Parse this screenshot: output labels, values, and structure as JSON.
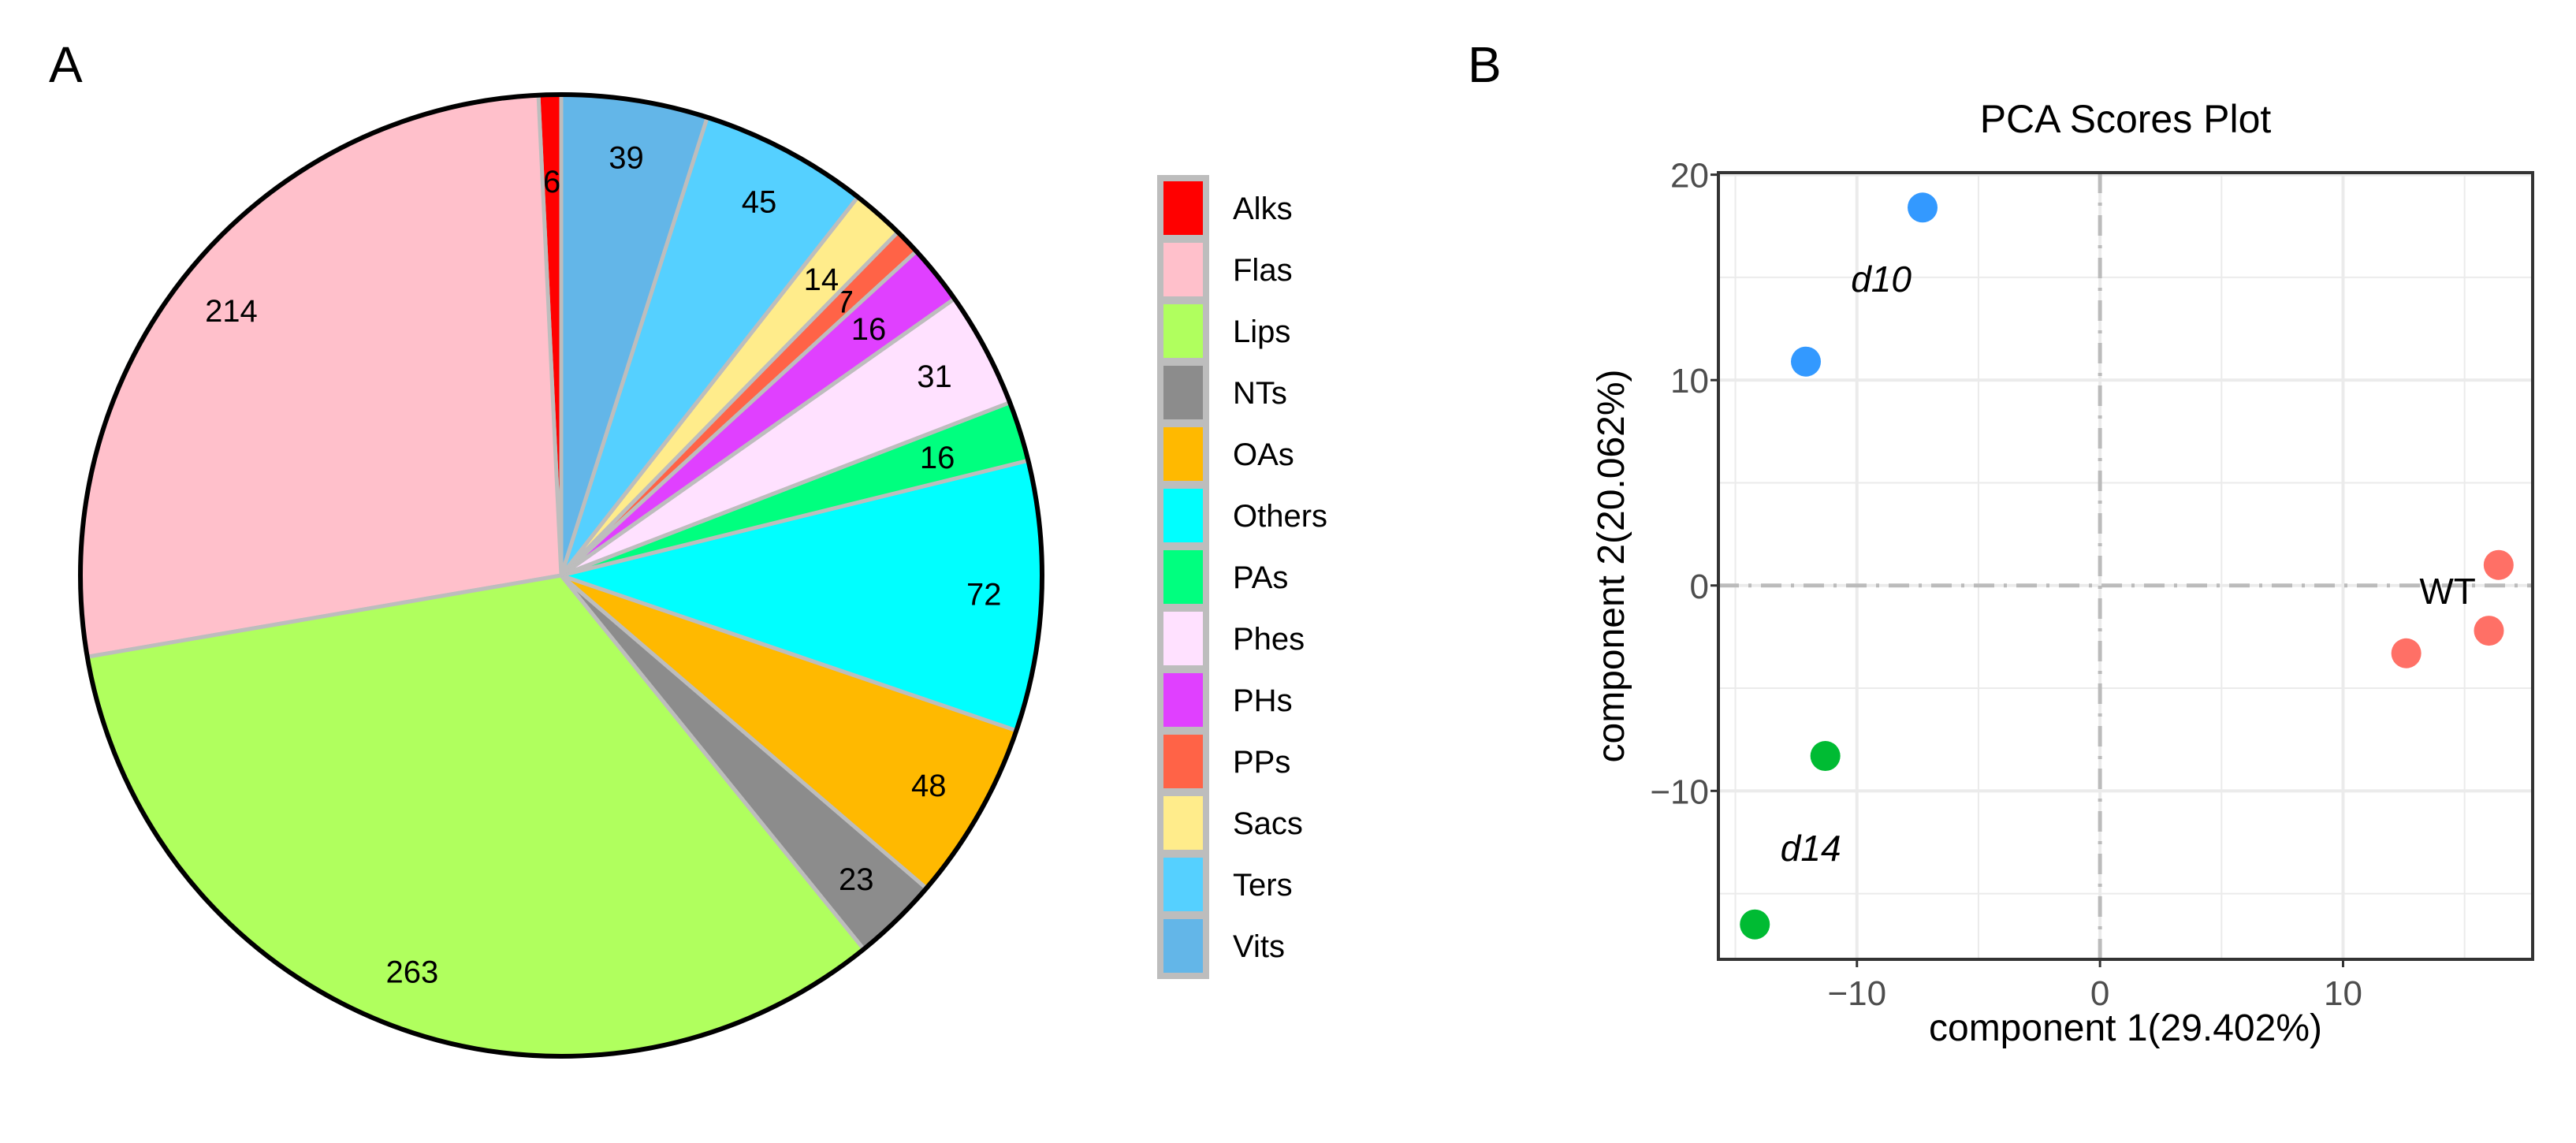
{
  "panel_labels": {
    "a": "A",
    "b": "B"
  },
  "chart_data": [
    {
      "type": "pie",
      "title": "",
      "start": "top",
      "direction": "counterclockwise",
      "legend_position": "right",
      "categories": [
        "Alks",
        "Flas",
        "Lips",
        "NTs",
        "OAs",
        "Others",
        "PAs",
        "Phes",
        "PHs",
        "PPs",
        "Sacs",
        "Ters",
        "Vits"
      ],
      "values": [
        6,
        214,
        263,
        23,
        48,
        72,
        16,
        31,
        16,
        7,
        14,
        45,
        39
      ],
      "colors": [
        "#ff0000",
        "#ffc0cb",
        "#b0ff5e",
        "#8c8c8c",
        "#ffb900",
        "#00ffff",
        "#00ff7f",
        "#ffe1ff",
        "#e040ff",
        "#ff6347",
        "#ffec8b",
        "#55d0ff",
        "#63b6e8"
      ]
    },
    {
      "type": "scatter",
      "title": "PCA Scores Plot",
      "xlabel": "component 1(29.402%)",
      "ylabel": "component 2(20.062%)",
      "xlim": [
        -15.7,
        17.8
      ],
      "ylim": [
        -18.2,
        20.1
      ],
      "xticks": [
        -10,
        0,
        10
      ],
      "yticks": [
        -10,
        0,
        10,
        20
      ],
      "tick_labels": {
        "x": [
          "−10",
          "0",
          "10"
        ],
        "y": [
          "−10",
          "0",
          "10",
          "20"
        ]
      },
      "grid": true,
      "reference_lines": {
        "x": 0,
        "y": 0
      },
      "series": [
        {
          "name": "d10",
          "color": "#3399ff",
          "label_italic": true,
          "label_at": [
            -9,
            14.3
          ],
          "points": [
            [
              -7.3,
              18.4
            ],
            [
              -12.1,
              10.9
            ]
          ]
        },
        {
          "name": "d14",
          "color": "#00bb33",
          "label_italic": true,
          "label_at": [
            -11.9,
            -13.4
          ],
          "points": [
            [
              -11.3,
              -8.3
            ],
            [
              -14.2,
              -16.5
            ]
          ]
        },
        {
          "name": "WT",
          "color": "#ff7066",
          "label_italic": false,
          "label_at": [
            14.3,
            -0.9
          ],
          "points": [
            [
              16.4,
              1.0
            ],
            [
              16.0,
              -2.2
            ],
            [
              12.6,
              -3.3
            ]
          ]
        }
      ]
    }
  ]
}
